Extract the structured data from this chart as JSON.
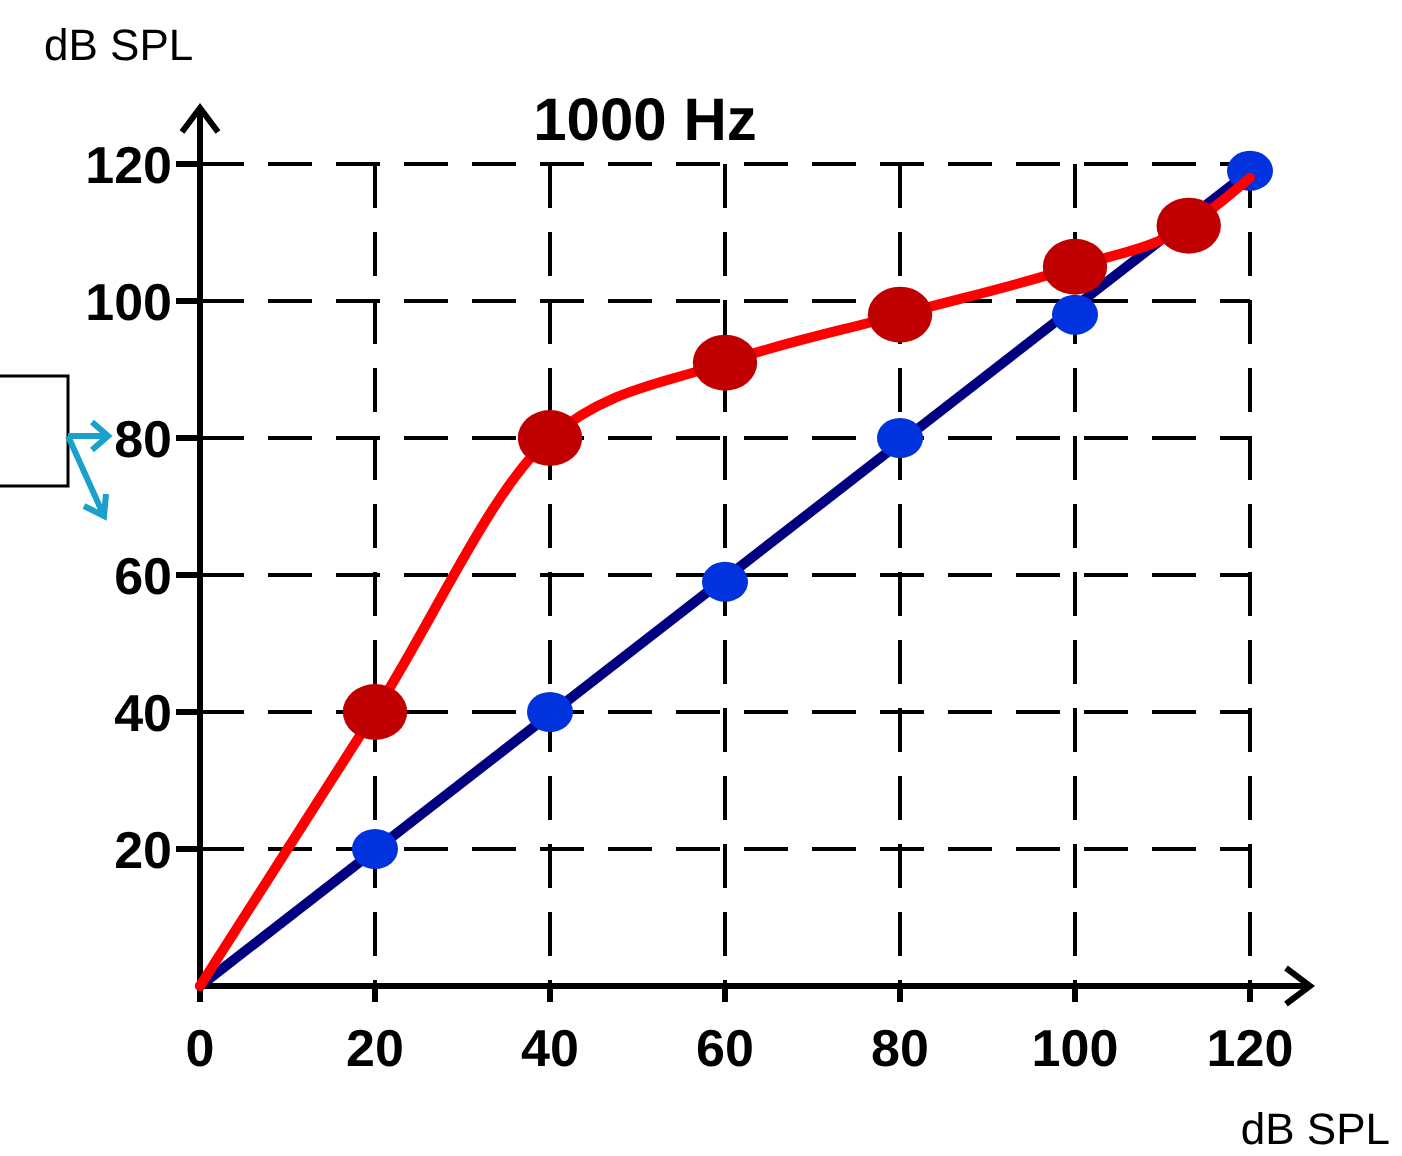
{
  "chart_data": {
    "type": "line",
    "title": "1000 Hz",
    "xlabel": "dB SPL",
    "ylabel": "dB SPL",
    "xlim": [
      0,
      120
    ],
    "ylim": [
      0,
      120
    ],
    "xticks": [
      0,
      20,
      40,
      60,
      80,
      100,
      120
    ],
    "yticks": [
      20,
      40,
      60,
      80,
      100,
      120
    ],
    "grid": true,
    "series": [
      {
        "color": "#000080",
        "x": [
          0,
          120
        ],
        "values": [
          0,
          119
        ],
        "marker": "none"
      },
      {
        "type": "scatter",
        "color": "#0033dd",
        "x": [
          20,
          40,
          60,
          80,
          100,
          120
        ],
        "values": [
          20,
          40,
          59,
          80,
          98,
          119
        ],
        "marker": "circle"
      },
      {
        "color": "#ff0000",
        "x": [
          0,
          20,
          40,
          60,
          80,
          100,
          113,
          120
        ],
        "values": [
          0,
          40,
          80,
          91,
          98,
          105,
          111,
          118
        ],
        "marker": "none"
      },
      {
        "type": "scatter",
        "color": "#c00000",
        "x": [
          20,
          40,
          60,
          80,
          100,
          113
        ],
        "values": [
          40,
          80,
          91,
          98,
          105,
          111
        ],
        "marker": "circle"
      }
    ]
  }
}
